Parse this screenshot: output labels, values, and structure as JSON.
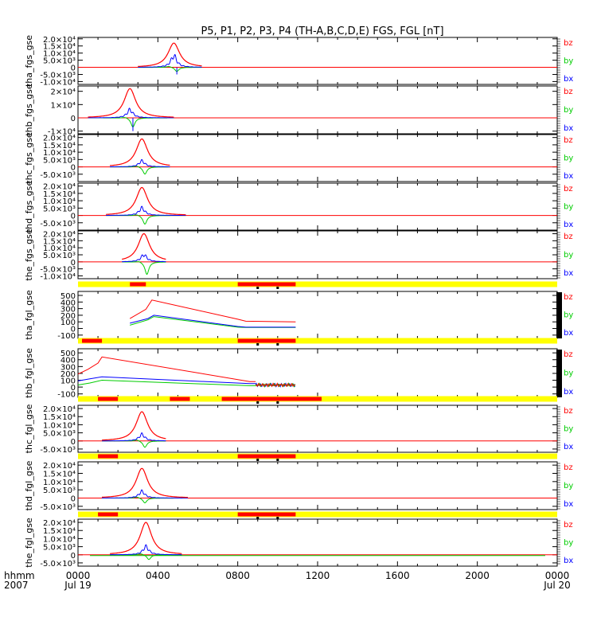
{
  "title": "P5, P1, P2, P3, P4 (TH-A,B,C,D,E) FGS, FGL [nT]",
  "colors": {
    "bx": "#0000ff",
    "by": "#00cc00",
    "bz": "#ff0000",
    "bar_yellow": "#ffff00",
    "bar_red": "#ff0000",
    "axis": "#000000"
  },
  "legend_labels": [
    "bz",
    "by",
    "bx"
  ],
  "time_axis": {
    "label_line1": "hhmm",
    "label_line2": "2007",
    "ticks": [
      {
        "hour": 0,
        "label": "0000",
        "date": "Jul 19"
      },
      {
        "hour": 4,
        "label": "0400",
        "date": ""
      },
      {
        "hour": 8,
        "label": "0800",
        "date": ""
      },
      {
        "hour": 12,
        "label": "1200",
        "date": ""
      },
      {
        "hour": 16,
        "label": "1600",
        "date": ""
      },
      {
        "hour": 20,
        "label": "2000",
        "date": ""
      },
      {
        "hour": 24,
        "label": "0000",
        "date": "Jul 20"
      }
    ],
    "range_hours": [
      0,
      24
    ]
  },
  "chart_data": [
    {
      "type": "line",
      "ylabel": "tha_fgs_gse",
      "ylim": [
        -12000,
        21000
      ],
      "yticks": [
        {
          "v": 20000,
          "label": "2.0×10⁴"
        },
        {
          "v": 15000,
          "label": "1.5×10⁴"
        },
        {
          "v": 10000,
          "label": "1.0×10⁴"
        },
        {
          "v": 5000,
          "label": "5.0×10³"
        },
        {
          "v": 0,
          "label": "0"
        },
        {
          "v": -5000,
          "label": "-5.0×10³"
        },
        {
          "v": -10000,
          "label": "-1.0×10⁴"
        }
      ],
      "spike": {
        "center": 4.8,
        "bz_peak": 17000,
        "bx_peak": 8000,
        "by_min": -3000,
        "drop": -5000,
        "span": [
          3.0,
          6.2
        ]
      },
      "flat": [
        0,
        24
      ],
      "tics_right": true
    },
    {
      "type": "line",
      "ylabel": "thb_fgs_gse",
      "ylim": [
        -12000,
        24000
      ],
      "yticks": [
        {
          "v": 20000,
          "label": "2×10⁴"
        },
        {
          "v": 10000,
          "label": "1×10⁴"
        },
        {
          "v": 0,
          "label": "0"
        },
        {
          "v": -10000,
          "label": "-1×10⁴"
        }
      ],
      "spike": {
        "center": 2.6,
        "bz_peak": 22000,
        "bx_peak": 6000,
        "by_min": -7000,
        "drop": -10000,
        "span": [
          0.5,
          4.8
        ]
      },
      "flat": [
        0,
        24
      ],
      "tics_right": true
    },
    {
      "type": "line",
      "ylabel": "thc_fgs_gse",
      "ylim": [
        -10000,
        22000
      ],
      "yticks": [
        {
          "v": 20000,
          "label": "2.0×10⁴"
        },
        {
          "v": 15000,
          "label": "1.5×10⁴"
        },
        {
          "v": 10000,
          "label": "1.0×10⁴"
        },
        {
          "v": 5000,
          "label": "5.0×10³"
        },
        {
          "v": 0,
          "label": "0"
        },
        {
          "v": -5000,
          "label": "-5.0×10³"
        }
      ],
      "spike": {
        "center": 3.2,
        "bz_peak": 19000,
        "bx_peak": 4000,
        "by_min": -5000,
        "drop": 0,
        "span": [
          1.6,
          4.6
        ]
      },
      "flat": [
        0,
        24
      ],
      "tics_right": true
    },
    {
      "type": "line",
      "ylabel": "thd_fgs_gse",
      "ylim": [
        -10000,
        22000
      ],
      "yticks": [
        {
          "v": 20000,
          "label": "2.0×10⁴"
        },
        {
          "v": 15000,
          "label": "1.5×10⁴"
        },
        {
          "v": 10000,
          "label": "1.0×10⁴"
        },
        {
          "v": 5000,
          "label": "5.0×10³"
        },
        {
          "v": 0,
          "label": "0"
        },
        {
          "v": -5000,
          "label": "-5.0×10³"
        }
      ],
      "spike": {
        "center": 3.2,
        "bz_peak": 19000,
        "bx_peak": 5000,
        "by_min": -6000,
        "drop": 0,
        "span": [
          1.4,
          5.4
        ]
      },
      "flat": [
        0,
        24
      ],
      "tics_right": true
    },
    {
      "type": "line",
      "ylabel": "the_fgs_gse",
      "ylim": [
        -12000,
        22000
      ],
      "yticks": [
        {
          "v": 20000,
          "label": "2.0×10⁴"
        },
        {
          "v": 15000,
          "label": "1.5×10⁴"
        },
        {
          "v": 10000,
          "label": "1.0×10⁴"
        },
        {
          "v": 5000,
          "label": "5.0×10³"
        },
        {
          "v": 0,
          "label": "0"
        },
        {
          "v": -5000,
          "label": "-5.0×10³"
        },
        {
          "v": -10000,
          "label": "-1.0×10⁴"
        }
      ],
      "spike": {
        "center": 3.3,
        "bz_peak": 20000,
        "bx_peak": 5000,
        "by_min": -9000,
        "drop": 0,
        "span": [
          2.2,
          4.4
        ]
      },
      "flat": [
        0,
        24
      ],
      "tics_right": true,
      "bar": {
        "segments": [
          [
            2.6,
            3.4
          ],
          [
            8.0,
            10.9
          ]
        ]
      }
    },
    {
      "type": "line",
      "ylabel": "tha_fgl_gse",
      "ylim": [
        -150,
        560
      ],
      "yticks": [
        {
          "v": 500,
          "label": "500"
        },
        {
          "v": 400,
          "label": "400"
        },
        {
          "v": 300,
          "label": "300"
        },
        {
          "v": 200,
          "label": "200"
        },
        {
          "v": 100,
          "label": "100"
        },
        {
          "v": 0,
          "label": "0"
        },
        {
          "v": -100,
          "label": "-100"
        }
      ],
      "fgl": {
        "bz": [
          [
            2.6,
            150
          ],
          [
            3.4,
            290
          ],
          [
            3.7,
            430
          ],
          [
            8.0,
            140
          ],
          [
            8.4,
            110
          ],
          [
            10.9,
            100
          ]
        ],
        "bx": [
          [
            2.6,
            80
          ],
          [
            3.5,
            150
          ],
          [
            3.8,
            200
          ],
          [
            8.0,
            30
          ],
          [
            8.4,
            20
          ],
          [
            10.9,
            20
          ]
        ],
        "by": [
          [
            2.6,
            50
          ],
          [
            3.5,
            130
          ],
          [
            3.8,
            180
          ],
          [
            8.0,
            20
          ],
          [
            8.4,
            15
          ],
          [
            10.9,
            15
          ]
        ]
      },
      "right_block": true,
      "bar": {
        "segments": [
          [
            0.2,
            1.2
          ],
          [
            8.0,
            10.9
          ]
        ]
      }
    },
    {
      "type": "line",
      "ylabel": "thb_fgl_gse",
      "ylim": [
        -150,
        560
      ],
      "yticks": [
        {
          "v": 500,
          "label": "500"
        },
        {
          "v": 400,
          "label": "400"
        },
        {
          "v": 300,
          "label": "300"
        },
        {
          "v": 200,
          "label": "200"
        },
        {
          "v": 100,
          "label": "100"
        },
        {
          "v": 0,
          "label": "0"
        },
        {
          "v": -100,
          "label": "-100"
        }
      ],
      "fgl": {
        "bz": [
          [
            0,
            190
          ],
          [
            0.5,
            260
          ],
          [
            1.0,
            350
          ],
          [
            1.2,
            440
          ],
          [
            8.6,
            80
          ],
          [
            8.9,
            80
          ]
        ],
        "bx": [
          [
            0,
            90
          ],
          [
            0.6,
            120
          ],
          [
            1.2,
            150
          ],
          [
            8.6,
            50
          ],
          [
            8.9,
            50
          ]
        ],
        "by": [
          [
            0,
            30
          ],
          [
            0.6,
            60
          ],
          [
            1.2,
            100
          ],
          [
            8.6,
            20
          ],
          [
            8.9,
            20
          ]
        ]
      },
      "noise": {
        "from": 8.9,
        "to": 10.9
      },
      "right_block": true,
      "bar": {
        "segments": [
          [
            1.0,
            2.0
          ],
          [
            4.6,
            5.6
          ],
          [
            7.2,
            12.2
          ]
        ]
      }
    },
    {
      "type": "line",
      "ylabel": "thc_fgl_gse",
      "ylim": [
        -7000,
        22000
      ],
      "yticks": [
        {
          "v": 20000,
          "label": "2.0×10⁴"
        },
        {
          "v": 15000,
          "label": "1.5×10⁴"
        },
        {
          "v": 10000,
          "label": "1.0×10⁴"
        },
        {
          "v": 5000,
          "label": "5.0×10³"
        },
        {
          "v": 0,
          "label": "0"
        },
        {
          "v": -5000,
          "label": "-5.0×10³"
        }
      ],
      "spike": {
        "center": 3.2,
        "bz_peak": 18000,
        "bx_peak": 4000,
        "by_min": -4000,
        "drop": 0,
        "span": [
          1.2,
          4.4
        ]
      },
      "flat": [
        0,
        24
      ],
      "tics_right": true,
      "bar": {
        "segments": [
          [
            1.0,
            2.0
          ],
          [
            8.0,
            10.9
          ]
        ]
      }
    },
    {
      "type": "line",
      "ylabel": "thd_fgl_gse",
      "ylim": [
        -7000,
        22000
      ],
      "yticks": [
        {
          "v": 20000,
          "label": "2.0×10⁴"
        },
        {
          "v": 15000,
          "label": "1.5×10⁴"
        },
        {
          "v": 10000,
          "label": "1.0×10⁴"
        },
        {
          "v": 5000,
          "label": "5.0×10³"
        },
        {
          "v": 0,
          "label": "0"
        },
        {
          "v": -5000,
          "label": "-5.0×10³"
        }
      ],
      "spike": {
        "center": 3.2,
        "bz_peak": 18000,
        "bx_peak": 4000,
        "by_min": -3000,
        "drop": 0,
        "span": [
          1.2,
          5.5
        ]
      },
      "flat": [
        0,
        24
      ],
      "tics_right": true,
      "bar": {
        "segments": [
          [
            1.0,
            2.0
          ],
          [
            8.0,
            10.9
          ]
        ]
      }
    },
    {
      "type": "line",
      "ylabel": "the_fgl_gse",
      "ylim": [
        -7000,
        22000
      ],
      "yticks": [
        {
          "v": 20000,
          "label": "2.0×10⁴"
        },
        {
          "v": 15000,
          "label": "1.5×10⁴"
        },
        {
          "v": 10000,
          "label": "1.0×10⁴"
        },
        {
          "v": 5000,
          "label": "5.0×10³"
        },
        {
          "v": 0,
          "label": "0"
        },
        {
          "v": -5000,
          "label": "-5.0×10³"
        }
      ],
      "spike": {
        "center": 3.4,
        "bz_peak": 20000,
        "bx_peak": 5000,
        "by_min": -3000,
        "drop": 0,
        "span": [
          1.6,
          5.2
        ]
      },
      "flat": [
        0,
        24
      ],
      "tics_right": true,
      "fgl_long": true,
      "bar": {
        "segments": [
          [
            1.2,
            2.1
          ],
          [
            8.0,
            10.9
          ]
        ]
      }
    }
  ]
}
